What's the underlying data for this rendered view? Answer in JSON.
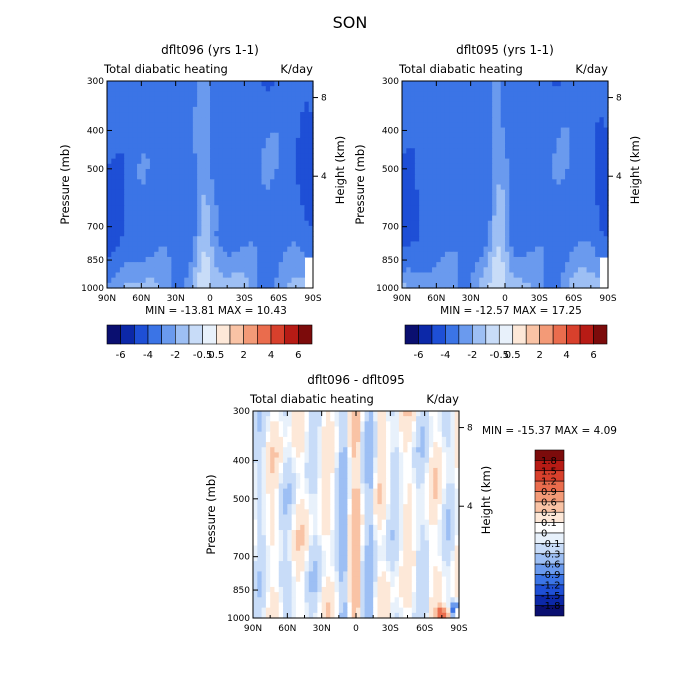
{
  "figure_title": "SON",
  "chart_data": [
    {
      "type": "heatmap",
      "title": "dflt096 (yrs 1-1)",
      "subtitle_left": "Total diabatic heating",
      "subtitle_right": "K/day",
      "ylabel": "Pressure (mb)",
      "ylabel_right": "Height (km)",
      "x_ticks": [
        "90N",
        "60N",
        "30N",
        "0",
        "30S",
        "60S",
        "90S"
      ],
      "y_ticks": [
        "300",
        "400",
        "500",
        "700",
        "850",
        "1000"
      ],
      "y_ticks_right": [
        "8",
        "4"
      ],
      "stats": {
        "min_label": "MIN =",
        "min": "-13.81",
        "max_label": "MAX =",
        "max": "10.43"
      },
      "colorbar_ticks": [
        "-6",
        "-4",
        "-2",
        "-0.5",
        "0.5",
        "2",
        "4",
        "6"
      ],
      "colorbar_colors": [
        "#0a0f70",
        "#0c28a8",
        "#1e4fd6",
        "#3b74e6",
        "#6a9aee",
        "#9dbff4",
        "#c8dcf8",
        "#e8f1fb",
        "#fde8d8",
        "#f9c3a5",
        "#f39a77",
        "#ea6c4d",
        "#d8402c",
        "#b71b15",
        "#7c0b0b"
      ],
      "ylim": [
        1000,
        300
      ]
    },
    {
      "type": "heatmap",
      "title": "dflt095 (yrs 1-1)",
      "subtitle_left": "Total diabatic heating",
      "subtitle_right": "K/day",
      "ylabel": "Pressure (mb)",
      "ylabel_right": "Height (km)",
      "x_ticks": [
        "90N",
        "60N",
        "30N",
        "0",
        "30S",
        "60S",
        "90S"
      ],
      "y_ticks": [
        "300",
        "400",
        "500",
        "700",
        "850",
        "1000"
      ],
      "y_ticks_right": [
        "8",
        "4"
      ],
      "stats": {
        "min_label": "MIN =",
        "min": "-12.57",
        "max_label": "MAX =",
        "max": "17.25"
      },
      "colorbar_ticks": [
        "-6",
        "-4",
        "-2",
        "-0.5",
        "0.5",
        "2",
        "4",
        "6"
      ],
      "colorbar_colors": [
        "#0a0f70",
        "#0c28a8",
        "#1e4fd6",
        "#3b74e6",
        "#6a9aee",
        "#9dbff4",
        "#c8dcf8",
        "#e8f1fb",
        "#fde8d8",
        "#f9c3a5",
        "#f39a77",
        "#ea6c4d",
        "#d8402c",
        "#b71b15",
        "#7c0b0b"
      ],
      "ylim": [
        1000,
        300
      ]
    },
    {
      "type": "heatmap",
      "title": "dflt096 - dflt095",
      "subtitle_left": "Total diabatic heating",
      "subtitle_right": "K/day",
      "ylabel": "Pressure (mb)",
      "ylabel_right": "Height (km)",
      "x_ticks": [
        "90N",
        "60N",
        "30N",
        "0",
        "30S",
        "60S",
        "90S"
      ],
      "y_ticks": [
        "300",
        "400",
        "500",
        "700",
        "850",
        "1000"
      ],
      "y_ticks_right": [
        "8",
        "4"
      ],
      "stats": {
        "min_label": "MIN =",
        "min": "-15.37",
        "max_label": "MAX =",
        "max": "4.09"
      },
      "colorbar_ticks": [
        "1.8",
        "1.5",
        "1.2",
        "0.9",
        "0.6",
        "0.3",
        "0.1",
        "0",
        "-0.1",
        "-0.3",
        "-0.6",
        "-0.9",
        "-1.2",
        "-1.5",
        "-1.8"
      ],
      "colorbar_colors": [
        "#7c0b0b",
        "#b71b15",
        "#d8402c",
        "#ea6c4d",
        "#f39a77",
        "#f9c3a5",
        "#fde8d8",
        "#ffffff",
        "#e8f1fb",
        "#c8dcf8",
        "#9dbff4",
        "#6a9aee",
        "#3b74e6",
        "#1e4fd6",
        "#0c28a8",
        "#0a0f70"
      ],
      "ylim": [
        1000,
        300
      ]
    }
  ]
}
